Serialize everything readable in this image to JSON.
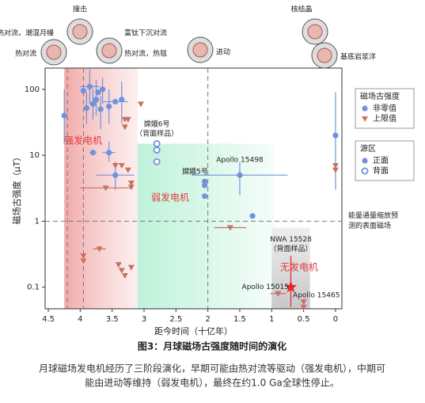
{
  "chart_data": {
    "type": "scatter",
    "log_y": true,
    "xlabel": "距今时间（十亿年）",
    "ylabel": "磁场古强度（μT）",
    "xlim": [
      4.55,
      -0.1
    ],
    "ylim": [
      0.047,
      210
    ],
    "xticks": [
      4.5,
      4,
      3.5,
      3,
      2.5,
      2,
      1.5,
      1,
      0.5,
      0
    ],
    "yticks": [
      0.1,
      1,
      10,
      100
    ],
    "regions": [
      {
        "label": "强发电机",
        "xlim": [
          4.25,
          3.1
        ],
        "top": 210,
        "color": "#e88a8a"
      },
      {
        "label": "弱发电机",
        "xlim": [
          3.1,
          0.95
        ],
        "top": 15,
        "color": "#bdf0d8"
      },
      {
        "label": "无发电机",
        "xlim": [
          1.0,
          0.4
        ],
        "top": 0.8,
        "color": "#d4d4d4"
      }
    ],
    "vlines": [
      4.2,
      3.95,
      2.0
    ],
    "hline": {
      "value": 1,
      "label": [
        "能量通量缩放预",
        "测的表面磁场"
      ]
    },
    "legends": [
      {
        "title": "磁场古强度",
        "entries": [
          "非零值",
          "上限值"
        ]
      },
      {
        "title": "源区",
        "entries": [
          "正面",
          "背面"
        ]
      }
    ],
    "series": [
      {
        "kind": 0,
        "side": 0,
        "color": "#6f93de",
        "x": [
          4.25,
          3.95,
          3.9,
          3.85,
          3.8,
          3.75,
          3.72,
          3.68,
          3.65,
          3.55,
          3.45,
          3.35,
          3.8,
          3.55,
          3.45,
          2.05,
          2.05,
          2.05,
          1.5,
          1.3,
          0
        ],
        "values": [
          40,
          95,
          52,
          110,
          60,
          70,
          90,
          50,
          100,
          55,
          65,
          70,
          11,
          11,
          5,
          4,
          3.5,
          2.4,
          5,
          1.2,
          20
        ],
        "y_low": [
          15,
          null,
          30,
          60,
          35,
          40,
          null,
          25,
          60,
          30,
          null,
          30,
          null,
          8,
          3,
          null,
          null,
          null,
          2.5,
          null,
          3
        ],
        "y_high": [
          100,
          null,
          90,
          200,
          100,
          140,
          null,
          80,
          150,
          100,
          null,
          130,
          null,
          16,
          8,
          null,
          null,
          null,
          8,
          null,
          90
        ],
        "xerr": [
          null,
          null,
          null,
          0.15,
          null,
          null,
          null,
          null,
          null,
          null,
          0.2,
          null,
          0.05,
          0.1,
          0.3,
          null,
          null,
          null,
          0.75,
          null,
          null
        ]
      },
      {
        "kind": 0,
        "side": 1,
        "color": "#6f93de",
        "x": [
          2.8,
          2.8,
          2.8
        ],
        "values": [
          15,
          12,
          8
        ]
      },
      {
        "kind": 1,
        "side": 0,
        "color": "#c9705f",
        "x": [
          3.3,
          3.25,
          3.3,
          3.05,
          3.45,
          3.35,
          3.25,
          3.2,
          3.2,
          3.6,
          1.65,
          3.95,
          3.95,
          3.7,
          3.4,
          3.35,
          3.3,
          3.2,
          0.9,
          0.5,
          0.5,
          0,
          0
        ],
        "values": [
          35,
          35,
          27,
          60,
          7,
          7,
          6,
          3.8,
          3.3,
          3.2,
          0.8,
          0.3,
          0.25,
          0.38,
          0.22,
          0.18,
          0.15,
          0.2,
          0.08,
          0.06,
          0.05,
          7,
          6
        ],
        "xerr": [
          null,
          null,
          null,
          null,
          null,
          null,
          null,
          null,
          null,
          0.4,
          0.25,
          null,
          null,
          0.1,
          null,
          null,
          null,
          null,
          0.12,
          null,
          null,
          null,
          null
        ]
      },
      {
        "kind": 2,
        "side": 0,
        "color": "#e8252a",
        "x": [
          0.7
        ],
        "values": [
          0.1
        ],
        "y_low": [
          0.05
        ],
        "y_high": [
          0.3
        ]
      }
    ],
    "annotations": [
      {
        "lines": [
          "嫦娥6号",
          "（背面样品）"
        ],
        "x": 2.8,
        "y": 25
      },
      {
        "lines": [
          "嫦娥5号"
        ],
        "x": 2.2,
        "y": 5.6
      },
      {
        "lines": [
          "Apollo 15498"
        ],
        "x": 1.5,
        "y": 8.5
      },
      {
        "lines": [
          "NWA 15528",
          "（背面样品）"
        ],
        "x": 0.7,
        "y": 0.45
      },
      {
        "lines": [
          "Apollo 15015"
        ],
        "x": 1.1,
        "y": 0.1
      },
      {
        "lines": [
          "Apollo 15465"
        ],
        "x": 0.3,
        "y": 0.075
      }
    ],
    "icons": [
      "撞击",
      "热对流，潮湿月幔",
      "富钛下沉对流",
      "热对流",
      "热对流，热毯",
      "进动",
      "核结晶",
      "基底岩浆洋"
    ]
  },
  "caption": "图3：月球磁场古强度随时间的演化",
  "paragraph": [
    "月球磁场发电机经历了三阶段演化，早期可能由热对流等驱动（强发电机），中期可",
    "能由进动等维持（弱发电机），最终在约1.0 Ga全球性停止。"
  ]
}
